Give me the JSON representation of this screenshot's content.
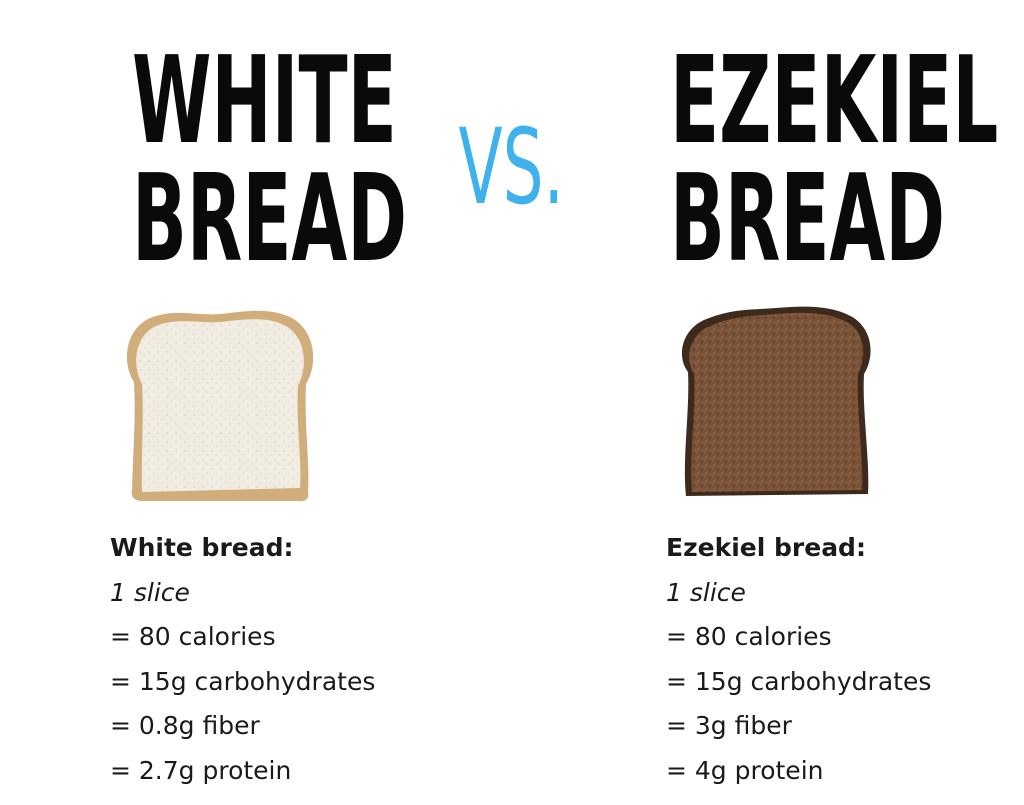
{
  "left": {
    "title": [
      "WHITE",
      "BREAD"
    ],
    "image": "white-bread-slice",
    "heading": "White bread:",
    "serving": "1 slice",
    "facts": [
      "= 80 calories",
      "= 15g carbohydrates",
      "= 0.8g fiber",
      "= 2.7g protein"
    ]
  },
  "vs": "VS.",
  "right": {
    "title": [
      "EZEKIEL",
      "BREAD"
    ],
    "image": "ezekiel-bread-slice",
    "heading": "Ezekiel bread:",
    "serving": "1 slice",
    "facts": [
      "= 80 calories",
      "= 15g carbohydrates",
      "= 3g fiber",
      "= 4g protein"
    ]
  },
  "colors": {
    "title": "#0a0a0a",
    "vs": "#3fb2ee",
    "white_bread_crumb": "#f1ece2",
    "white_bread_crust": "#d2ad7c",
    "ezekiel_crumb": "#7a5237",
    "ezekiel_crust": "#3e2a1c"
  }
}
